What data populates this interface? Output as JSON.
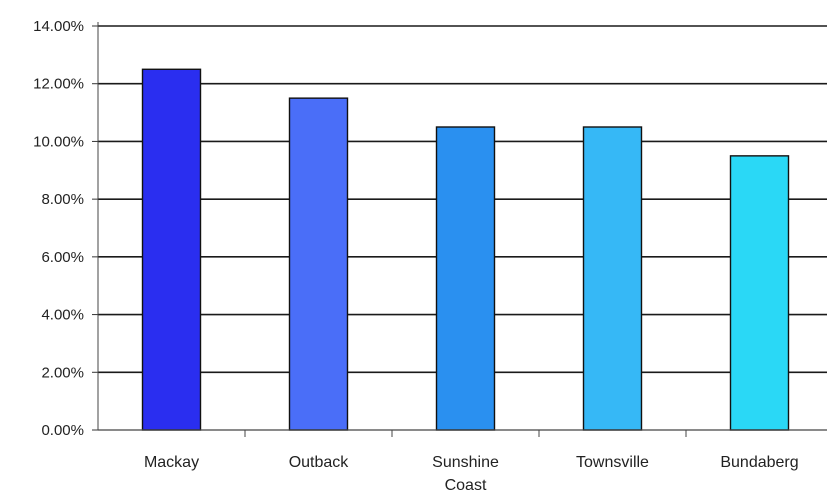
{
  "chart_data": {
    "type": "bar",
    "categories": [
      [
        "Mackay"
      ],
      [
        "Outback"
      ],
      [
        "Sunshine",
        "Coast"
      ],
      [
        "Townsville"
      ],
      [
        "Bundaberg"
      ]
    ],
    "values": [
      12.5,
      11.5,
      10.5,
      10.5,
      9.5
    ],
    "bar_colors": [
      "#2a2ef0",
      "#4a6ef8",
      "#2a90f0",
      "#36b8f6",
      "#2ad8f6"
    ],
    "ylim": [
      0,
      14
    ],
    "yticks": [
      0,
      2,
      4,
      6,
      8,
      10,
      12,
      14
    ],
    "ytick_labels": [
      "0.00%",
      "2.00%",
      "4.00%",
      "6.00%",
      "8.00%",
      "10.00%",
      "12.00%",
      "14.00%"
    ],
    "grid": true,
    "title": "",
    "xlabel": "",
    "ylabel": ""
  }
}
